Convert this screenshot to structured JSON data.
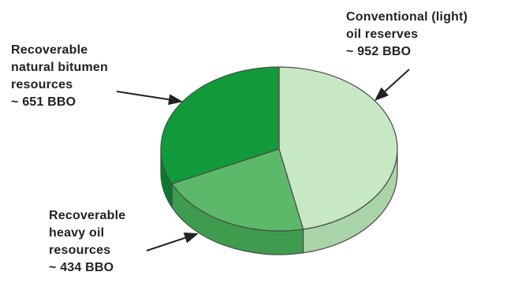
{
  "chart_data": {
    "type": "pie",
    "style": "3d",
    "slices": [
      {
        "name": "Conventional (light) oil reserves",
        "value": 952,
        "unit": "BBO",
        "label_lines": [
          "Conventional (light)",
          "oil reserves",
          "~ 952 BBO"
        ],
        "color": "#c6e9c4",
        "side_color": "#a9d4a7"
      },
      {
        "name": "Recoverable heavy oil resources",
        "value": 434,
        "unit": "BBO",
        "label_lines": [
          "Recoverable",
          "heavy oil",
          "resources",
          "~ 434 BBO"
        ],
        "color": "#5cb96a",
        "side_color": "#3f9c4f"
      },
      {
        "name": "Recoverable natural bitumen resources",
        "value": 651,
        "unit": "BBO",
        "label_lines": [
          "Recoverable",
          "natural bitumen",
          "resources",
          "~ 651 BBO"
        ],
        "color": "#129a3a",
        "side_color": "#0b7a2c"
      }
    ]
  }
}
